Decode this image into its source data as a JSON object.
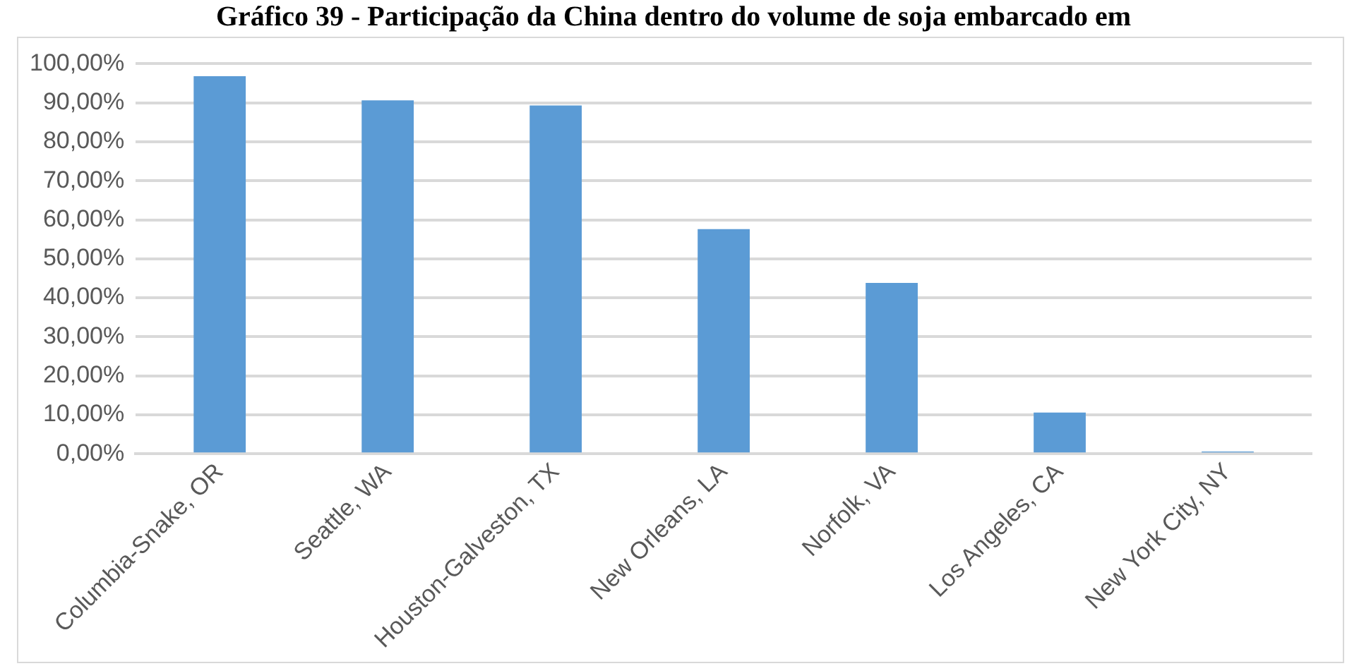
{
  "chart_data": {
    "type": "bar",
    "title": "Gráfico 39 - Participação da China dentro do volume de soja embarcado em",
    "categories": [
      "Columbia-Snake, OR",
      "Seattle, WA",
      "Houston-Galveston, TX",
      "New Orleans, LA",
      "Norfolk, VA",
      "Los Angeles, CA",
      "New York City, NY"
    ],
    "values": [
      96.8,
      90.6,
      89.3,
      57.6,
      43.8,
      10.6,
      0.6
    ],
    "color": "#5b9bd5",
    "ylim": [
      0,
      100
    ],
    "yticks": [
      {
        "value": 0,
        "label": "0,00%"
      },
      {
        "value": 10,
        "label": "10,00%"
      },
      {
        "value": 20,
        "label": "20,00%"
      },
      {
        "value": 30,
        "label": "30,00%"
      },
      {
        "value": 40,
        "label": "40,00%"
      },
      {
        "value": 50,
        "label": "50,00%"
      },
      {
        "value": 60,
        "label": "60,00%"
      },
      {
        "value": 70,
        "label": "70,00%"
      },
      {
        "value": 80,
        "label": "80,00%"
      },
      {
        "value": 90,
        "label": "90,00%"
      },
      {
        "value": 100,
        "label": "100,00%"
      }
    ],
    "grid": "y"
  }
}
